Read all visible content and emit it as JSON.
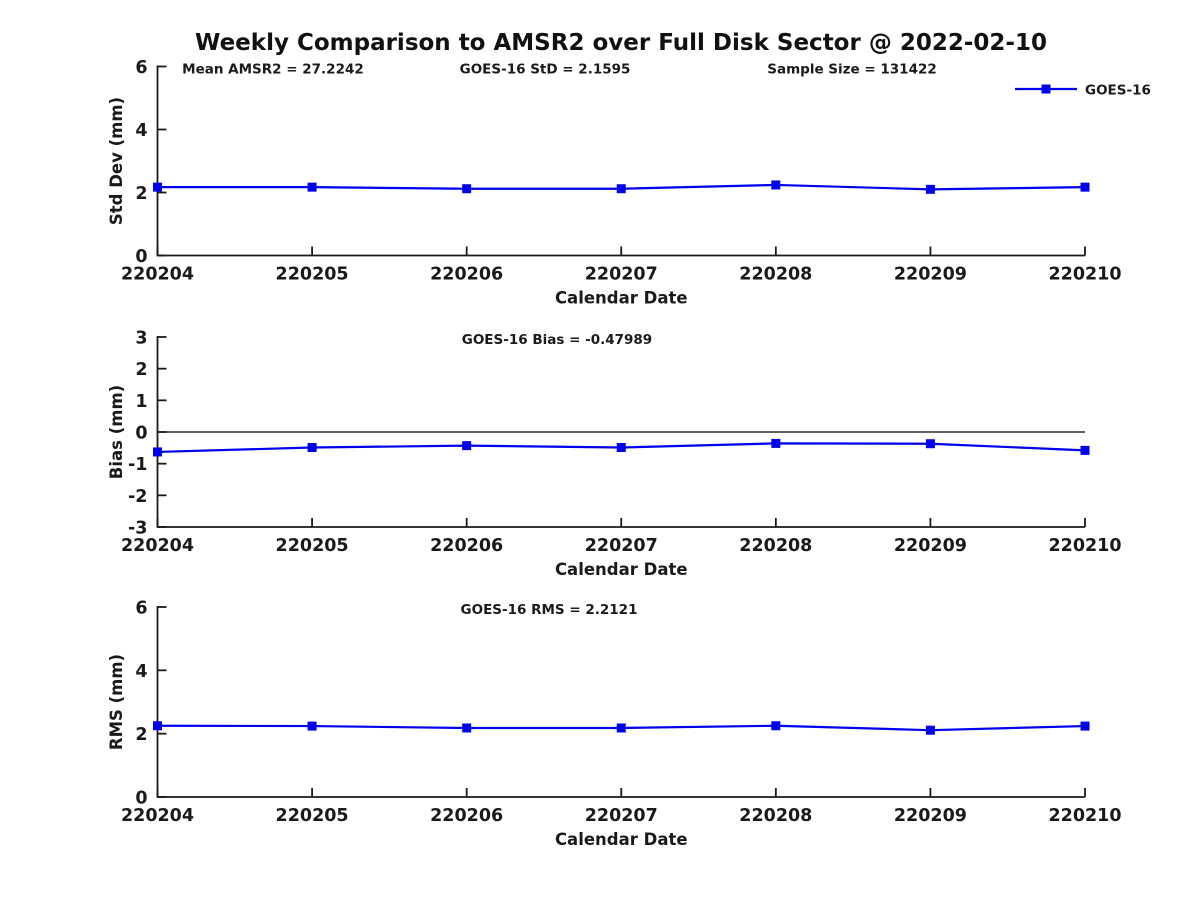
{
  "figure": {
    "title": "Weekly Comparison to AMSR2 over Full Disk Sector @ 2022-02-10",
    "series_color": "#0000EE",
    "axis_color": "#1a1a1a",
    "legend": {
      "label": "GOES-16",
      "position": "top-right-outside"
    }
  },
  "chart_data": [
    {
      "type": "line",
      "categories": [
        "220204",
        "220205",
        "220206",
        "220207",
        "220208",
        "220209",
        "220210"
      ],
      "series": [
        {
          "name": "GOES-16",
          "values": [
            2.17,
            2.17,
            2.12,
            2.12,
            2.24,
            2.1,
            2.17
          ]
        }
      ],
      "xlabel": "Calendar Date",
      "ylabel": "Std Dev (mm)",
      "ylim": [
        0,
        6
      ],
      "yticks": [
        0,
        2,
        4,
        6
      ],
      "grid": false,
      "zero_line": false,
      "show_legend": true,
      "annotations": [
        {
          "text": "Mean AMSR2 = 27.2242",
          "cx": 0.1245
        },
        {
          "text": "GOES-16 StD = 2.1595",
          "cx": 0.4178
        },
        {
          "text": "Sample Size = 131422",
          "cx": 0.7488
        }
      ]
    },
    {
      "type": "line",
      "categories": [
        "220204",
        "220205",
        "220206",
        "220207",
        "220208",
        "220209",
        "220210"
      ],
      "series": [
        {
          "name": "GOES-16",
          "values": [
            -0.63,
            -0.49,
            -0.43,
            -0.49,
            -0.36,
            -0.37,
            -0.58
          ]
        }
      ],
      "xlabel": "Calendar Date",
      "ylabel": "Bias (mm)",
      "ylim": [
        -3,
        3
      ],
      "yticks": [
        -3,
        -2,
        -1,
        0,
        1,
        2,
        3
      ],
      "grid": false,
      "zero_line": true,
      "show_legend": false,
      "annotations": [
        {
          "text": "GOES-16 Bias  = -0.47989",
          "cx": 0.4307
        }
      ]
    },
    {
      "type": "line",
      "categories": [
        "220204",
        "220205",
        "220206",
        "220207",
        "220208",
        "220209",
        "220210"
      ],
      "series": [
        {
          "name": "GOES-16",
          "values": [
            2.25,
            2.24,
            2.18,
            2.18,
            2.25,
            2.11,
            2.24
          ]
        }
      ],
      "xlabel": "Calendar Date",
      "ylabel": "RMS (mm)",
      "ylim": [
        0,
        6
      ],
      "yticks": [
        0,
        2,
        4,
        6
      ],
      "grid": false,
      "zero_line": false,
      "show_legend": false,
      "annotations": [
        {
          "text": "GOES-16 RMS = 2.2121",
          "cx": 0.4221
        }
      ]
    }
  ]
}
